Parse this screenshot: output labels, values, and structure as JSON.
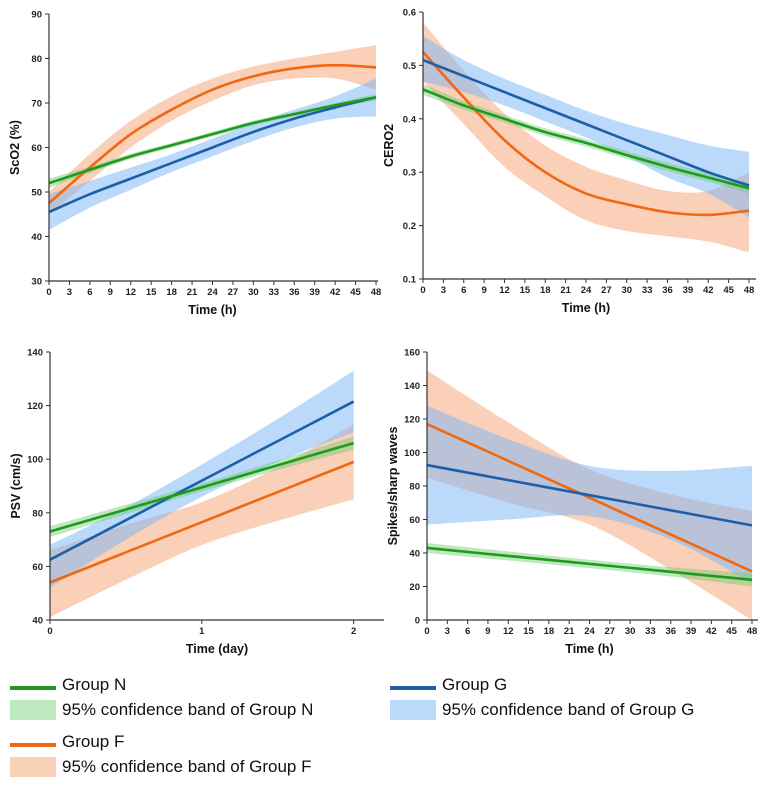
{
  "colors": {
    "N": "#1e9a1e",
    "G": "#1d5ea9",
    "F": "#f0680f",
    "N_band": "rgba(110,205,110,0.45)",
    "G_band": "rgba(120,180,245,0.5)",
    "F_band": "rgba(245,150,100,0.45)"
  },
  "legend": {
    "N_line": "Group N",
    "N_band": "95% confidence band of Group N",
    "G_line": "Group G",
    "G_band": "95% confidence band of Group G",
    "F_line": "Group F",
    "F_band": "95% confidence band of Group F"
  },
  "chart_data": [
    {
      "type": "line",
      "title": "",
      "ylabel": "ScO2 (%)",
      "xlabel": "Time (h)",
      "xlim": [
        0,
        48
      ],
      "ylim": [
        30,
        90
      ],
      "xticks": [
        0,
        3,
        6,
        9,
        12,
        15,
        18,
        21,
        24,
        27,
        30,
        33,
        36,
        39,
        42,
        45,
        48
      ],
      "yticks": [
        30,
        40,
        50,
        60,
        70,
        80,
        90
      ],
      "x": [
        0,
        6,
        12,
        18,
        24,
        30,
        36,
        42,
        48
      ],
      "series": [
        {
          "name": "Group F",
          "values": [
            47.5,
            55.5,
            63,
            68.5,
            73,
            76,
            77.8,
            78.5,
            78
          ],
          "lower": [
            45,
            52.5,
            60,
            66,
            70.5,
            74,
            75.5,
            75.5,
            73
          ],
          "upper": [
            50,
            58.5,
            66,
            71.5,
            75.5,
            78.2,
            80,
            81.5,
            83
          ]
        },
        {
          "name": "Group G",
          "values": [
            45.5,
            49.5,
            53,
            56.5,
            60,
            63.5,
            66.5,
            69,
            71.3
          ],
          "lower": [
            41.5,
            46.5,
            50.5,
            54.5,
            58,
            61.5,
            64.5,
            66.5,
            67
          ],
          "upper": [
            49.5,
            52.5,
            55.5,
            58.5,
            62,
            65.5,
            68.5,
            71.5,
            75.5
          ]
        },
        {
          "name": "Group N",
          "values": [
            52,
            55,
            58,
            60.5,
            63,
            65.5,
            67.5,
            69.5,
            71.3
          ],
          "lower": [
            51,
            54.3,
            57.4,
            60,
            62.5,
            65,
            67,
            69,
            70.5
          ],
          "upper": [
            53,
            55.7,
            58.6,
            61,
            63.5,
            66,
            68,
            70,
            72
          ]
        }
      ]
    },
    {
      "type": "line",
      "title": "",
      "ylabel": "CERO2",
      "xlabel": "Time (h)",
      "xlim": [
        0,
        48
      ],
      "ylim": [
        0.1,
        0.6
      ],
      "xticks": [
        0,
        3,
        6,
        9,
        12,
        15,
        18,
        21,
        24,
        27,
        30,
        33,
        36,
        39,
        42,
        45,
        48
      ],
      "yticks": [
        0.1,
        0.2,
        0.3,
        0.4,
        0.5,
        0.6
      ],
      "x": [
        0,
        6,
        12,
        18,
        24,
        30,
        36,
        42,
        48
      ],
      "series": [
        {
          "name": "Group F",
          "values": [
            0.525,
            0.44,
            0.36,
            0.3,
            0.26,
            0.24,
            0.225,
            0.22,
            0.228
          ],
          "lower": [
            0.47,
            0.39,
            0.31,
            0.255,
            0.21,
            0.19,
            0.18,
            0.17,
            0.15
          ],
          "upper": [
            0.58,
            0.49,
            0.41,
            0.35,
            0.31,
            0.285,
            0.265,
            0.265,
            0.3
          ]
        },
        {
          "name": "Group G",
          "values": [
            0.51,
            0.48,
            0.45,
            0.42,
            0.39,
            0.36,
            0.33,
            0.3,
            0.275
          ],
          "lower": [
            0.47,
            0.45,
            0.425,
            0.395,
            0.365,
            0.33,
            0.29,
            0.26,
            0.215
          ],
          "upper": [
            0.555,
            0.51,
            0.475,
            0.445,
            0.415,
            0.39,
            0.37,
            0.35,
            0.338
          ]
        },
        {
          "name": "Group N",
          "values": [
            0.455,
            0.425,
            0.4,
            0.375,
            0.355,
            0.332,
            0.31,
            0.29,
            0.27
          ],
          "lower": [
            0.445,
            0.417,
            0.393,
            0.368,
            0.348,
            0.325,
            0.302,
            0.282,
            0.26
          ],
          "upper": [
            0.465,
            0.433,
            0.407,
            0.382,
            0.362,
            0.339,
            0.318,
            0.298,
            0.28
          ]
        }
      ]
    },
    {
      "type": "line",
      "title": "",
      "ylabel": "PSV (cm/s)",
      "xlabel": "Time (day)",
      "xlim": [
        0,
        2.2
      ],
      "ylim": [
        40,
        140
      ],
      "xticks": [
        0,
        1,
        2
      ],
      "yticks": [
        40,
        60,
        80,
        100,
        120,
        140
      ],
      "x": [
        0,
        0.5,
        1,
        1.5,
        2
      ],
      "series": [
        {
          "name": "Group F",
          "values": [
            54,
            65.25,
            76.5,
            87.75,
            99
          ],
          "lower": [
            41,
            55,
            68,
            77,
            85
          ],
          "upper": [
            66,
            75.5,
            84,
            97,
            113
          ]
        },
        {
          "name": "Group G",
          "values": [
            62.5,
            77.25,
            92,
            106.75,
            121.5
          ],
          "lower": [
            52,
            70,
            86,
            99,
            110
          ],
          "upper": [
            68,
            82,
            98,
            115,
            133
          ]
        },
        {
          "name": "Group N",
          "values": [
            73,
            81.25,
            89.5,
            97.75,
            106
          ],
          "lower": [
            71,
            79.5,
            88,
            96,
            103.5
          ],
          "upper": [
            75,
            83,
            91,
            99.5,
            108.5
          ]
        }
      ]
    },
    {
      "type": "line",
      "title": "",
      "ylabel": "Spikes/sharp waves",
      "xlabel": "Time (h)",
      "xlim": [
        0,
        48
      ],
      "ylim": [
        0,
        160
      ],
      "xticks": [
        0,
        3,
        6,
        9,
        12,
        15,
        18,
        21,
        24,
        27,
        30,
        33,
        36,
        39,
        42,
        45,
        48
      ],
      "yticks": [
        0,
        20,
        40,
        60,
        80,
        100,
        120,
        140,
        160
      ],
      "x": [
        0,
        12,
        24,
        36,
        48
      ],
      "series": [
        {
          "name": "Group F",
          "values": [
            117,
            95,
            73,
            51,
            29
          ],
          "lower": [
            85,
            70,
            57,
            30,
            0
          ],
          "upper": [
            149,
            118,
            90,
            75,
            65
          ]
        },
        {
          "name": "Group G",
          "values": [
            92.5,
            83.5,
            74.5,
            65.5,
            56.5
          ],
          "lower": [
            57,
            60,
            62,
            48,
            22
          ],
          "upper": [
            128,
            108,
            92,
            89,
            92
          ]
        },
        {
          "name": "Group N",
          "values": [
            43,
            38.25,
            33.5,
            28.75,
            24
          ],
          "lower": [
            40,
            35.5,
            31,
            26,
            20
          ],
          "upper": [
            46,
            41,
            36,
            31.5,
            28
          ]
        }
      ]
    }
  ]
}
